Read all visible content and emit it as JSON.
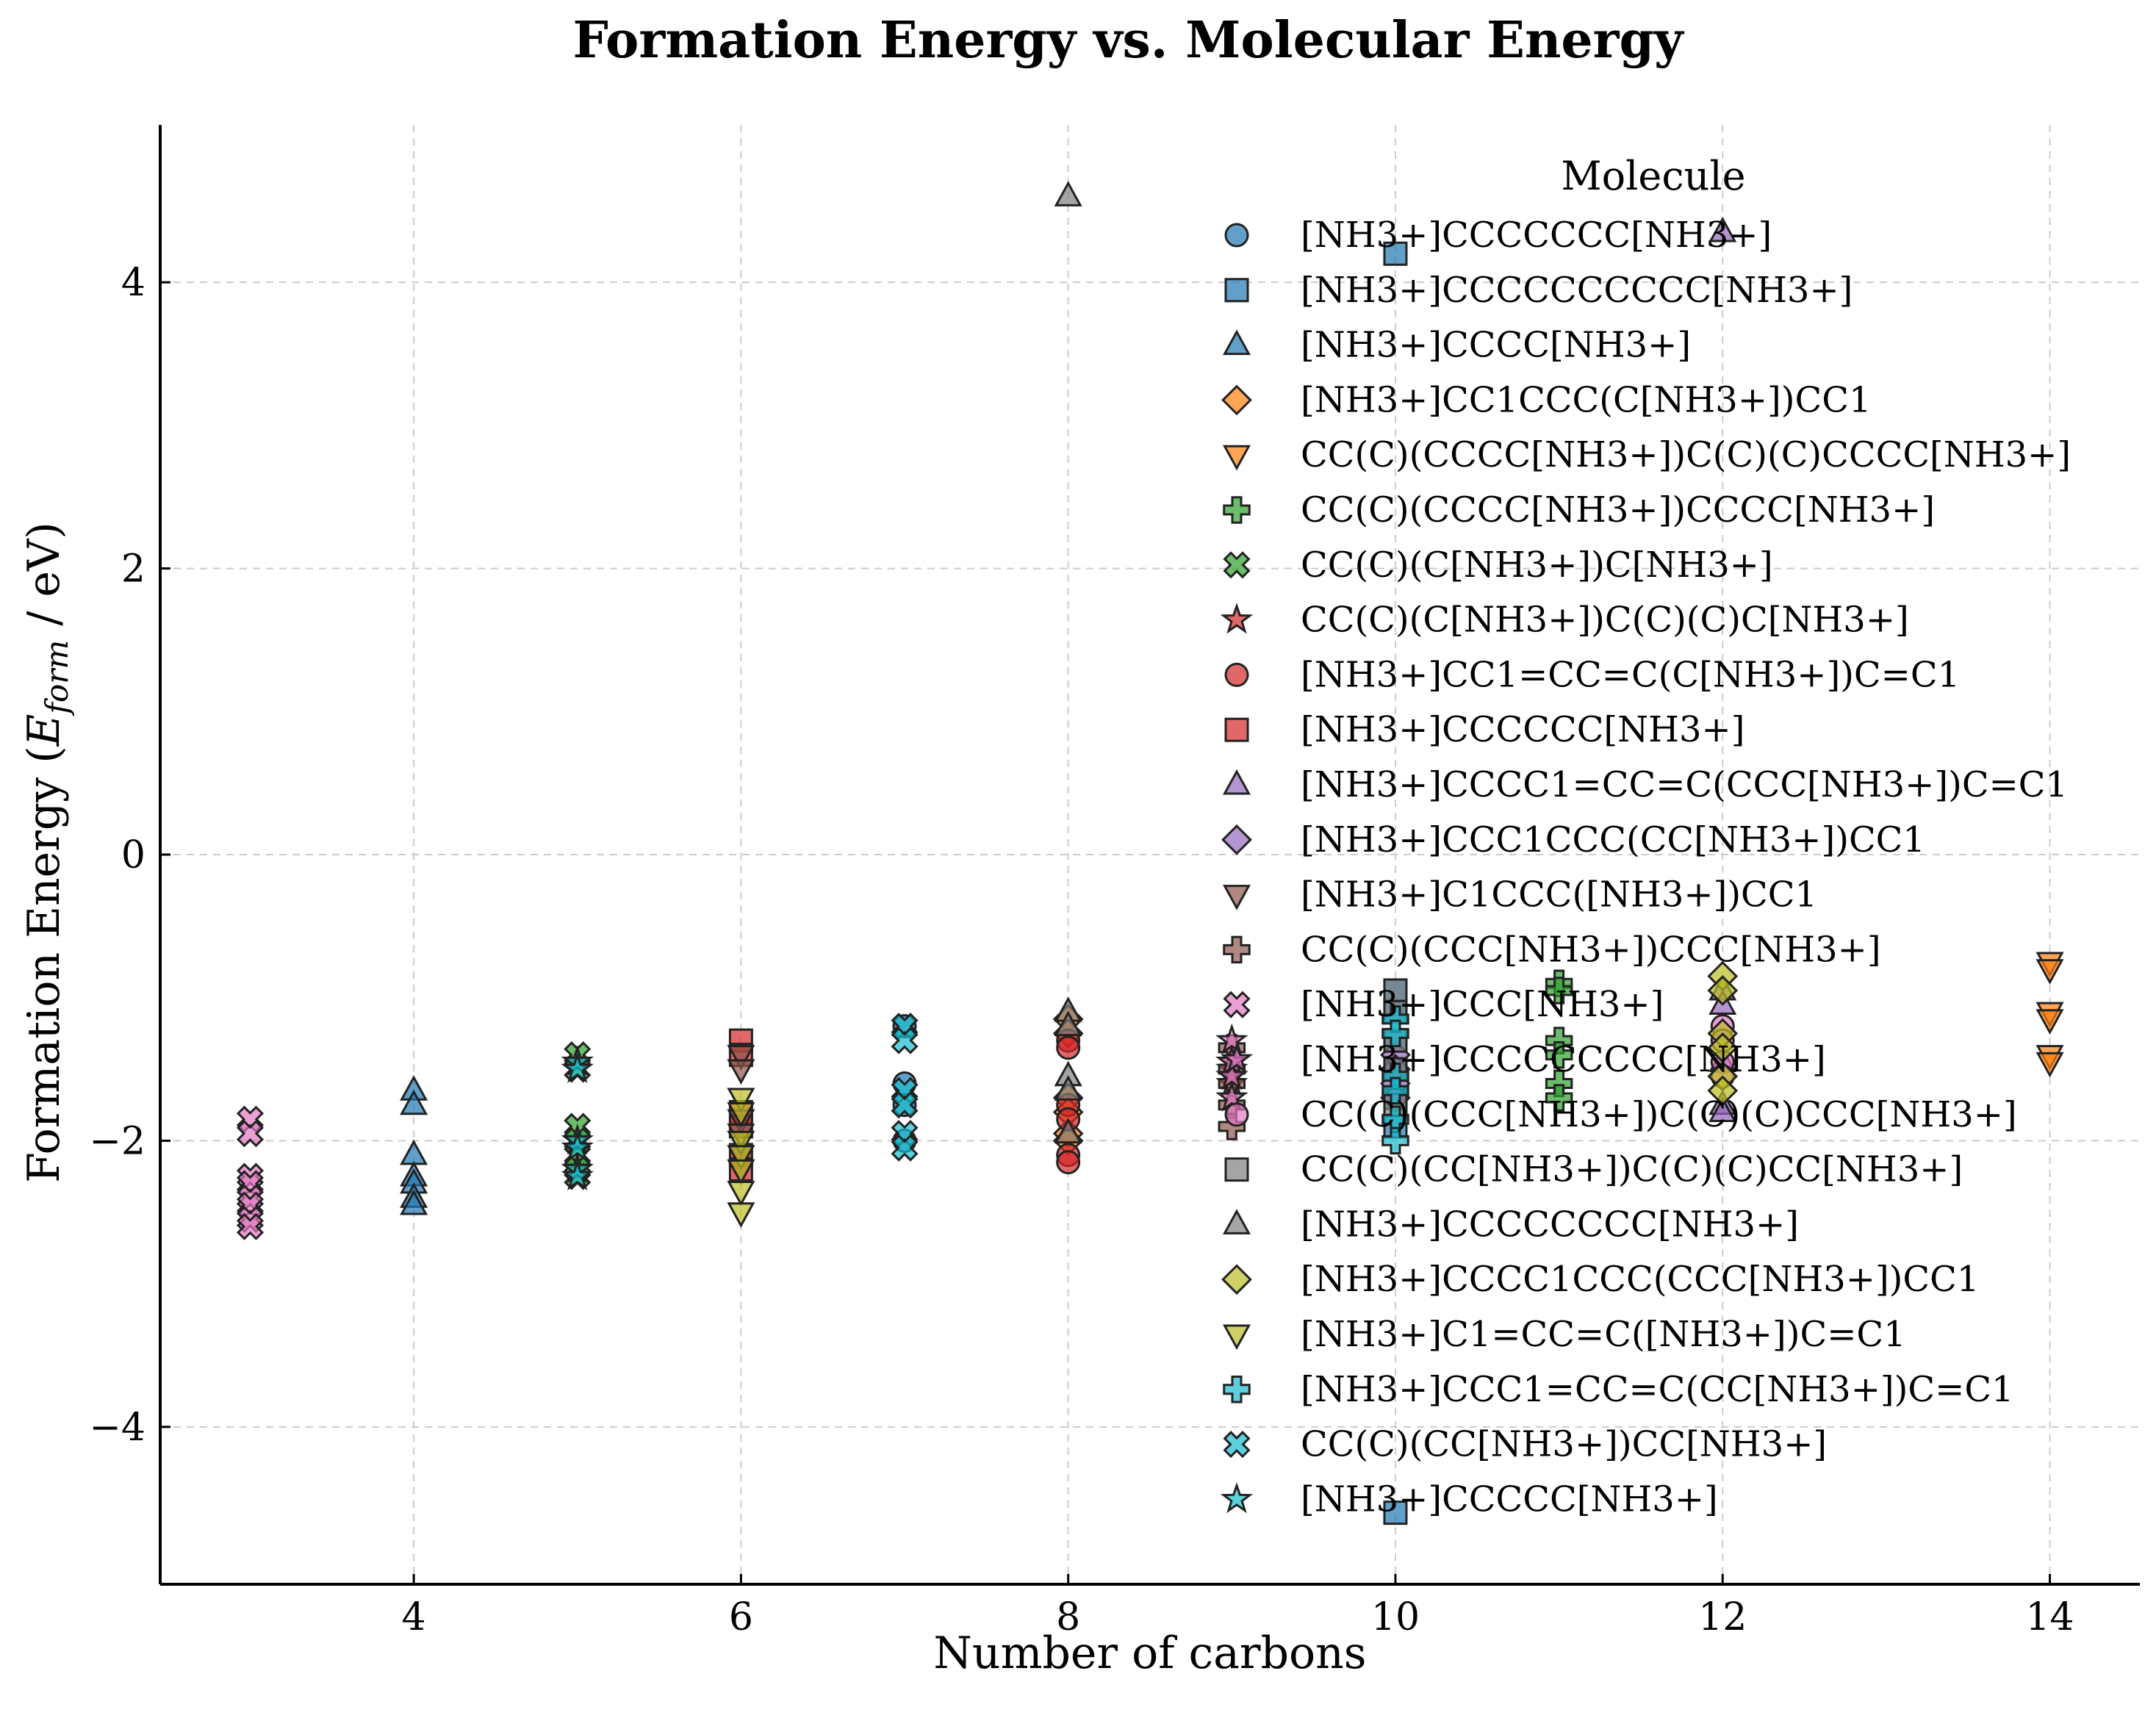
{
  "chart_data": {
    "type": "scatter",
    "title": "Formation Energy vs. Molecular Energy",
    "xlabel": "Number of carbons",
    "ylabel_main": "Formation Energy (",
    "ylabel_italic": "E",
    "ylabel_sub": "form",
    "ylabel_tail": " / eV)",
    "xlim": [
      2.45,
      14.55
    ],
    "ylim": [
      -5.1,
      5.1
    ],
    "xticks": [
      4,
      6,
      8,
      10,
      12,
      14
    ],
    "yticks": [
      -4,
      -2,
      0,
      2,
      4
    ],
    "xtick_labels": [
      "4",
      "6",
      "8",
      "10",
      "12",
      "14"
    ],
    "ytick_labels": [
      "−4",
      "−2",
      "0",
      "2",
      "4"
    ],
    "grid": true,
    "legend_title": "Molecule",
    "legend_position": "upper right",
    "series": [
      {
        "name": "[NH3+]CCCCCCC[NH3+]",
        "color": "#1f77b4",
        "marker": "circle",
        "x": [
          7,
          7,
          7,
          7
        ],
        "y": [
          -1.2,
          -1.6,
          -1.75,
          -2.0
        ]
      },
      {
        "name": "[NH3+]CCCCCCCCCC[NH3+]",
        "color": "#1f77b4",
        "marker": "square",
        "x": [
          10,
          10,
          10,
          10,
          10,
          10,
          10,
          10
        ],
        "y": [
          4.2,
          -4.6,
          -0.95,
          -1.1,
          -1.3,
          -1.5,
          -1.7,
          -1.9
        ]
      },
      {
        "name": "[NH3+]CCCC[NH3+]",
        "color": "#1f77b4",
        "marker": "triangle-up",
        "x": [
          4,
          4,
          4,
          4,
          4,
          4,
          4
        ],
        "y": [
          -1.65,
          -1.75,
          -2.1,
          -2.25,
          -2.3,
          -2.4,
          -2.45
        ]
      },
      {
        "name": "[NH3+]CC1CCC(C[NH3+])CC1",
        "color": "#ff7f0e",
        "marker": "diamond",
        "x": [
          8,
          8,
          8,
          8,
          8,
          8
        ],
        "y": [
          -1.15,
          -1.25,
          -1.7,
          -1.8,
          -1.95,
          -2.0
        ]
      },
      {
        "name": "CC(C)(CCCC[NH3+])C(C)(C)CCCC[NH3+]",
        "color": "#ff7f0e",
        "marker": "triangle-down",
        "x": [
          14,
          14,
          14,
          14,
          14,
          14
        ],
        "y": [
          -0.75,
          -0.8,
          -1.1,
          -1.15,
          -1.4,
          -1.45
        ]
      },
      {
        "name": "CC(C)(CCCC[NH3+])CCCC[NH3+]",
        "color": "#2ca02c",
        "marker": "plus",
        "x": [
          11,
          11,
          11,
          11,
          11,
          11
        ],
        "y": [
          -0.9,
          -0.95,
          -1.3,
          -1.4,
          -1.6,
          -1.7
        ]
      },
      {
        "name": "CC(C)(C[NH3+])C[NH3+]",
        "color": "#2ca02c",
        "marker": "x",
        "x": [
          5,
          5,
          5,
          5,
          5,
          5,
          5
        ],
        "y": [
          -1.4,
          -1.5,
          -1.9,
          -2.0,
          -2.1,
          -2.2,
          -2.25
        ]
      },
      {
        "name": "CC(C)(C[NH3+])C(C)(C)C[NH3+]",
        "color": "#d62728",
        "marker": "star",
        "x": [
          9,
          9,
          9,
          9
        ],
        "y": [
          -1.45,
          -1.5,
          -1.55,
          -1.6
        ]
      },
      {
        "name": "[NH3+]CC1=CC=C(C[NH3+])C=C1",
        "color": "#d62728",
        "marker": "circle",
        "x": [
          8,
          8,
          8,
          8,
          8,
          8
        ],
        "y": [
          -1.3,
          -1.35,
          -1.75,
          -1.85,
          -2.1,
          -2.15
        ]
      },
      {
        "name": "[NH3+]CCCCCC[NH3+]",
        "color": "#d62728",
        "marker": "square",
        "x": [
          6,
          6,
          6,
          6,
          6,
          6
        ],
        "y": [
          -1.3,
          -1.4,
          -1.8,
          -1.9,
          -2.1,
          -2.2
        ]
      },
      {
        "name": "[NH3+]CCCC1=CC=C(CCC[NH3+])C=C1",
        "color": "#9467bd",
        "marker": "triangle-up",
        "x": [
          12,
          12,
          12,
          12,
          12,
          12
        ],
        "y": [
          4.35,
          -0.95,
          -1.05,
          -1.45,
          -1.75,
          -1.8
        ]
      },
      {
        "name": "[NH3+]CCC1CCC(CC[NH3+])CC1",
        "color": "#9467bd",
        "marker": "diamond",
        "x": [
          10,
          10,
          10,
          10
        ],
        "y": [
          -1.4,
          -1.5,
          -1.6,
          -1.7
        ]
      },
      {
        "name": "[NH3+]C1CCC([NH3+])CC1",
        "color": "#8c564b",
        "marker": "triangle-down",
        "x": [
          6,
          6,
          6,
          6,
          6,
          6
        ],
        "y": [
          -1.4,
          -1.5,
          -1.85,
          -1.95,
          -2.1,
          -2.2
        ]
      },
      {
        "name": "CC(C)(CCC[NH3+])CCC[NH3+]",
        "color": "#8c564b",
        "marker": "plus",
        "x": [
          9,
          9,
          9,
          9,
          9
        ],
        "y": [
          -1.35,
          -1.5,
          -1.6,
          -1.75,
          -1.9
        ]
      },
      {
        "name": "[NH3+]CCC[NH3+]",
        "color": "#e377c2",
        "marker": "x",
        "x": [
          3,
          3,
          3,
          3,
          3,
          3,
          3,
          3
        ],
        "y": [
          -1.85,
          -1.95,
          -2.25,
          -2.3,
          -2.4,
          -2.45,
          -2.55,
          -2.6
        ]
      },
      {
        "name": "[NH3+]CCCCCCCCC[NH3+]",
        "color": "#e377c2",
        "marker": "star",
        "x": [
          9,
          9,
          9,
          9
        ],
        "y": [
          -1.3,
          -1.45,
          -1.55,
          -1.7
        ]
      },
      {
        "name": "CC(C)(CCC[NH3+])C(C)(C)CCC[NH3+]",
        "color": "#e377c2",
        "marker": "circle",
        "x": [
          12,
          12,
          12,
          12
        ],
        "y": [
          -1.2,
          -1.3,
          -1.45,
          -1.55
        ]
      },
      {
        "name": "CC(C)(CC[NH3+])C(C)(C)CC[NH3+]",
        "color": "#7f7f7f",
        "marker": "square",
        "x": [
          10,
          10,
          10,
          10,
          10
        ],
        "y": [
          -0.95,
          -1.1,
          -1.3,
          -1.5,
          -1.75
        ]
      },
      {
        "name": "[NH3+]CCCCCCCC[NH3+]",
        "color": "#7f7f7f",
        "marker": "triangle-up",
        "x": [
          8,
          8,
          8,
          8,
          8,
          8
        ],
        "y": [
          4.6,
          -1.1,
          -1.2,
          -1.55,
          -1.65,
          -1.95
        ]
      },
      {
        "name": "[NH3+]CCCC1CCC(CCC[NH3+])CC1",
        "color": "#bcbd22",
        "marker": "diamond",
        "x": [
          12,
          12,
          12,
          12,
          12,
          12
        ],
        "y": [
          -0.85,
          -0.95,
          -1.25,
          -1.35,
          -1.55,
          -1.65
        ]
      },
      {
        "name": "[NH3+]C1=CC=C([NH3+])C=C1",
        "color": "#bcbd22",
        "marker": "triangle-down",
        "x": [
          6,
          6,
          6,
          6,
          6,
          6,
          6
        ],
        "y": [
          -1.7,
          -1.8,
          -2.0,
          -2.1,
          -2.2,
          -2.35,
          -2.5
        ]
      },
      {
        "name": "[NH3+]CCC1=CC=C(CC[NH3+])C=C1",
        "color": "#17becf",
        "marker": "plus",
        "x": [
          10,
          10,
          10,
          10,
          10,
          10
        ],
        "y": [
          -1.15,
          -1.25,
          -1.55,
          -1.65,
          -1.85,
          -2.0
        ]
      },
      {
        "name": "CC(C)(CC[NH3+])CC[NH3+]",
        "color": "#17becf",
        "marker": "x",
        "x": [
          7,
          7,
          7,
          7,
          7,
          7
        ],
        "y": [
          -1.2,
          -1.3,
          -1.65,
          -1.75,
          -1.95,
          -2.05
        ]
      },
      {
        "name": "[NH3+]CCCCC[NH3+]",
        "color": "#17becf",
        "marker": "star",
        "x": [
          5,
          5,
          5,
          5,
          5,
          5
        ],
        "y": [
          -1.45,
          -1.5,
          -2.0,
          -2.05,
          -2.2,
          -2.25
        ]
      }
    ]
  }
}
